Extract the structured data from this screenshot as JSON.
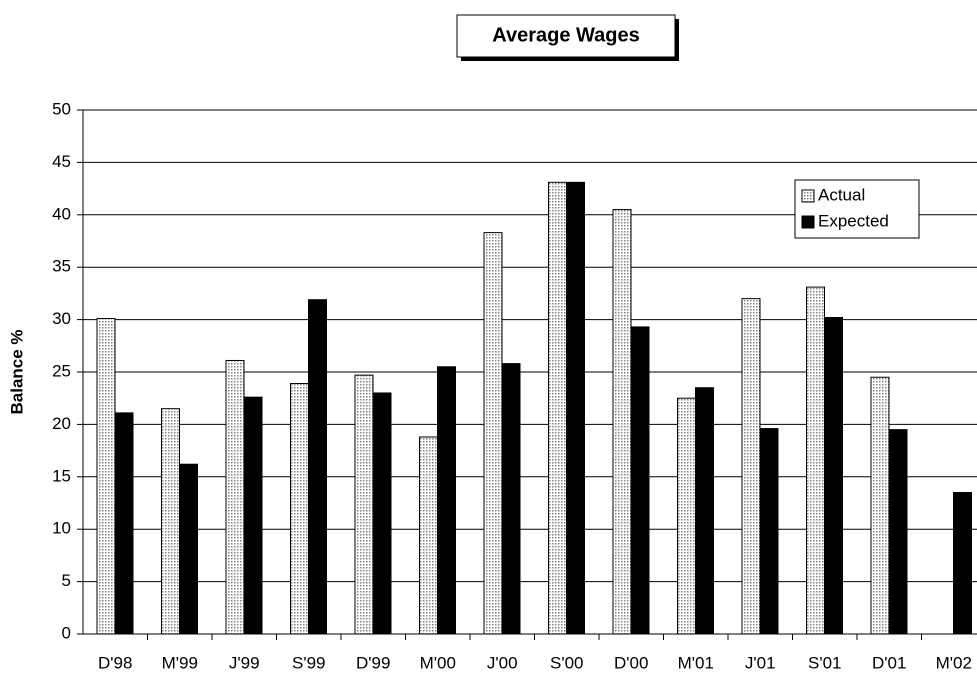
{
  "chart_data": {
    "type": "bar",
    "title": "Average Wages",
    "y_label": "Balance %",
    "categories": [
      "D'98",
      "M'99",
      "J'99",
      "S'99",
      "D'99",
      "M'00",
      "J'00",
      "S'00",
      "D'00",
      "M'01",
      "J'01",
      "S'01",
      "D'01",
      "M'02"
    ],
    "series": [
      {
        "name": "Actual",
        "color": "#c8c8c8",
        "values": [
          30.1,
          21.5,
          26.1,
          23.9,
          24.7,
          18.8,
          38.3,
          43.1,
          40.5,
          22.5,
          32.0,
          33.1,
          24.5,
          null
        ]
      },
      {
        "name": "Expected",
        "color": "#000000",
        "values": [
          21.1,
          16.2,
          22.6,
          31.9,
          23.0,
          25.5,
          25.8,
          43.1,
          29.3,
          23.5,
          19.6,
          30.2,
          19.5,
          13.5
        ]
      }
    ],
    "ylim": [
      0,
      50
    ],
    "yticks": [
      0,
      5,
      10,
      15,
      20,
      25,
      30,
      35,
      40,
      45,
      50
    ],
    "grid": true,
    "legend": "upper-right"
  }
}
